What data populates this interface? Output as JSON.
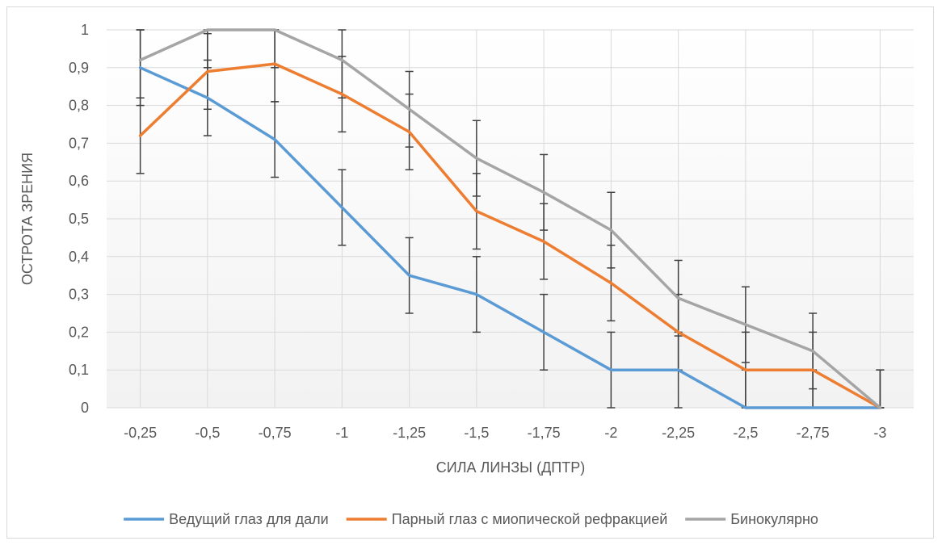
{
  "chart_data": {
    "type": "line",
    "title": "",
    "xlabel": "СИЛА ЛИНЗЫ (ДПТР)",
    "ylabel": "ОСТРОТА ЗРЕНИЯ",
    "categories": [
      "-0,25",
      "-0,5",
      "-0,75",
      "-1",
      "-1,25",
      "-1,5",
      "-1,75",
      "-2",
      "-2,25",
      "-2,5",
      "-2,75",
      "-3"
    ],
    "yticks": [
      "0",
      "0,1",
      "0,2",
      "0,3",
      "0,4",
      "0,5",
      "0,6",
      "0,7",
      "0,8",
      "0,9",
      "1"
    ],
    "ylim": [
      0,
      1
    ],
    "grid": true,
    "legend_position": "bottom",
    "error_bar": 0.1,
    "series": [
      {
        "name": "Ведущий глаз для дали",
        "color": "#5b9bd5",
        "values": [
          0.9,
          0.82,
          0.71,
          0.53,
          0.35,
          0.3,
          0.2,
          0.1,
          0.1,
          0,
          0,
          0
        ]
      },
      {
        "name": "Парный глаз с миопической рефракцией",
        "color": "#ed7d31",
        "values": [
          0.72,
          0.89,
          0.91,
          0.83,
          0.73,
          0.52,
          0.44,
          0.33,
          0.2,
          0.1,
          0.1,
          0
        ]
      },
      {
        "name": "Бинокулярно",
        "color": "#a5a5a5",
        "values": [
          0.92,
          1.0,
          1.0,
          0.92,
          0.79,
          0.66,
          0.57,
          0.47,
          0.29,
          0.22,
          0.15,
          0
        ]
      }
    ]
  }
}
